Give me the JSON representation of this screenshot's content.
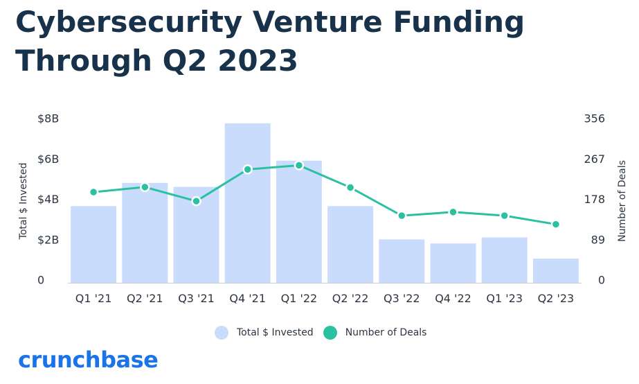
{
  "title": "Cybersecurity Venture Funding Through Q2 2023",
  "brand": {
    "logo_text": "crunchbase"
  },
  "colors": {
    "bars": "#cadcfc",
    "line": "#2bc0a1",
    "title": "#17324a",
    "logo": "#1a73e8"
  },
  "chart_data": {
    "type": "bar",
    "categories": [
      "Q1 '21",
      "Q2 '21",
      "Q3 '21",
      "Q4 '21",
      "Q1 '22",
      "Q2 '22",
      "Q3 '22",
      "Q4 '22",
      "Q1 '23",
      "Q2 '23"
    ],
    "series": [
      {
        "name": "Total $ Invested",
        "type": "bar",
        "axis": "left",
        "values": [
          3.8,
          4.95,
          4.75,
          7.9,
          6.05,
          3.8,
          2.15,
          1.95,
          2.25,
          1.2
        ]
      },
      {
        "name": "Number of Deals",
        "type": "line",
        "axis": "right",
        "values": [
          200,
          211,
          180,
          250,
          259,
          210,
          148,
          156,
          148,
          129
        ]
      }
    ],
    "y_left": {
      "label": "Total $ Invested",
      "ticks": [
        "0",
        "$2B",
        "$4B",
        "$6B",
        "$8B"
      ],
      "ylim": [
        0,
        8
      ]
    },
    "y_right": {
      "label": "Number of Deals",
      "ticks": [
        "0",
        "89",
        "178",
        "267",
        "356"
      ],
      "ylim": [
        0,
        356
      ]
    },
    "legend": [
      "Total $ Invested",
      "Number of Deals"
    ],
    "grid": false,
    "legend_position": "bottom"
  }
}
